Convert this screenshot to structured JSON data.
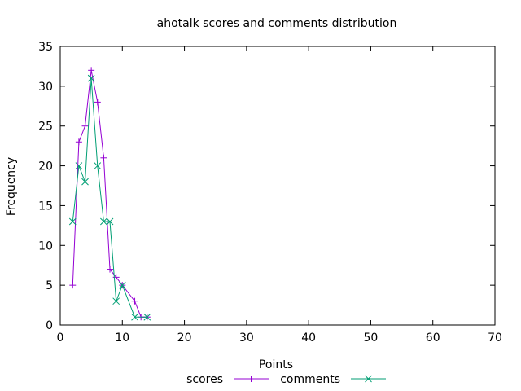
{
  "chart_data": {
    "type": "line",
    "title": "ahotalk scores and comments distribution",
    "xlabel": "Points",
    "ylabel": "Frequency",
    "xlim": [
      0,
      70
    ],
    "ylim": [
      0,
      35
    ],
    "x_ticks": [
      0,
      10,
      20,
      30,
      40,
      50,
      60,
      70
    ],
    "y_ticks": [
      0,
      5,
      10,
      15,
      20,
      25,
      30,
      35
    ],
    "grid": false,
    "legend_position": "bottom-center",
    "series": [
      {
        "name": "scores",
        "color": "#9400d3",
        "marker": "plus",
        "points": [
          [
            2,
            5
          ],
          [
            3,
            23
          ],
          [
            4,
            25
          ],
          [
            5,
            32
          ],
          [
            6,
            28
          ],
          [
            7,
            21
          ],
          [
            8,
            7
          ],
          [
            9,
            6
          ],
          [
            10,
            5
          ],
          [
            12,
            3
          ],
          [
            13,
            1
          ],
          [
            14,
            1
          ]
        ]
      },
      {
        "name": "comments",
        "color": "#009e73",
        "marker": "cross",
        "points": [
          [
            2,
            13
          ],
          [
            3,
            20
          ],
          [
            4,
            18
          ],
          [
            5,
            31
          ],
          [
            6,
            20
          ],
          [
            7,
            13
          ],
          [
            8,
            13
          ],
          [
            9,
            3
          ],
          [
            10,
            5
          ],
          [
            12,
            1
          ],
          [
            14,
            1
          ]
        ]
      }
    ]
  }
}
